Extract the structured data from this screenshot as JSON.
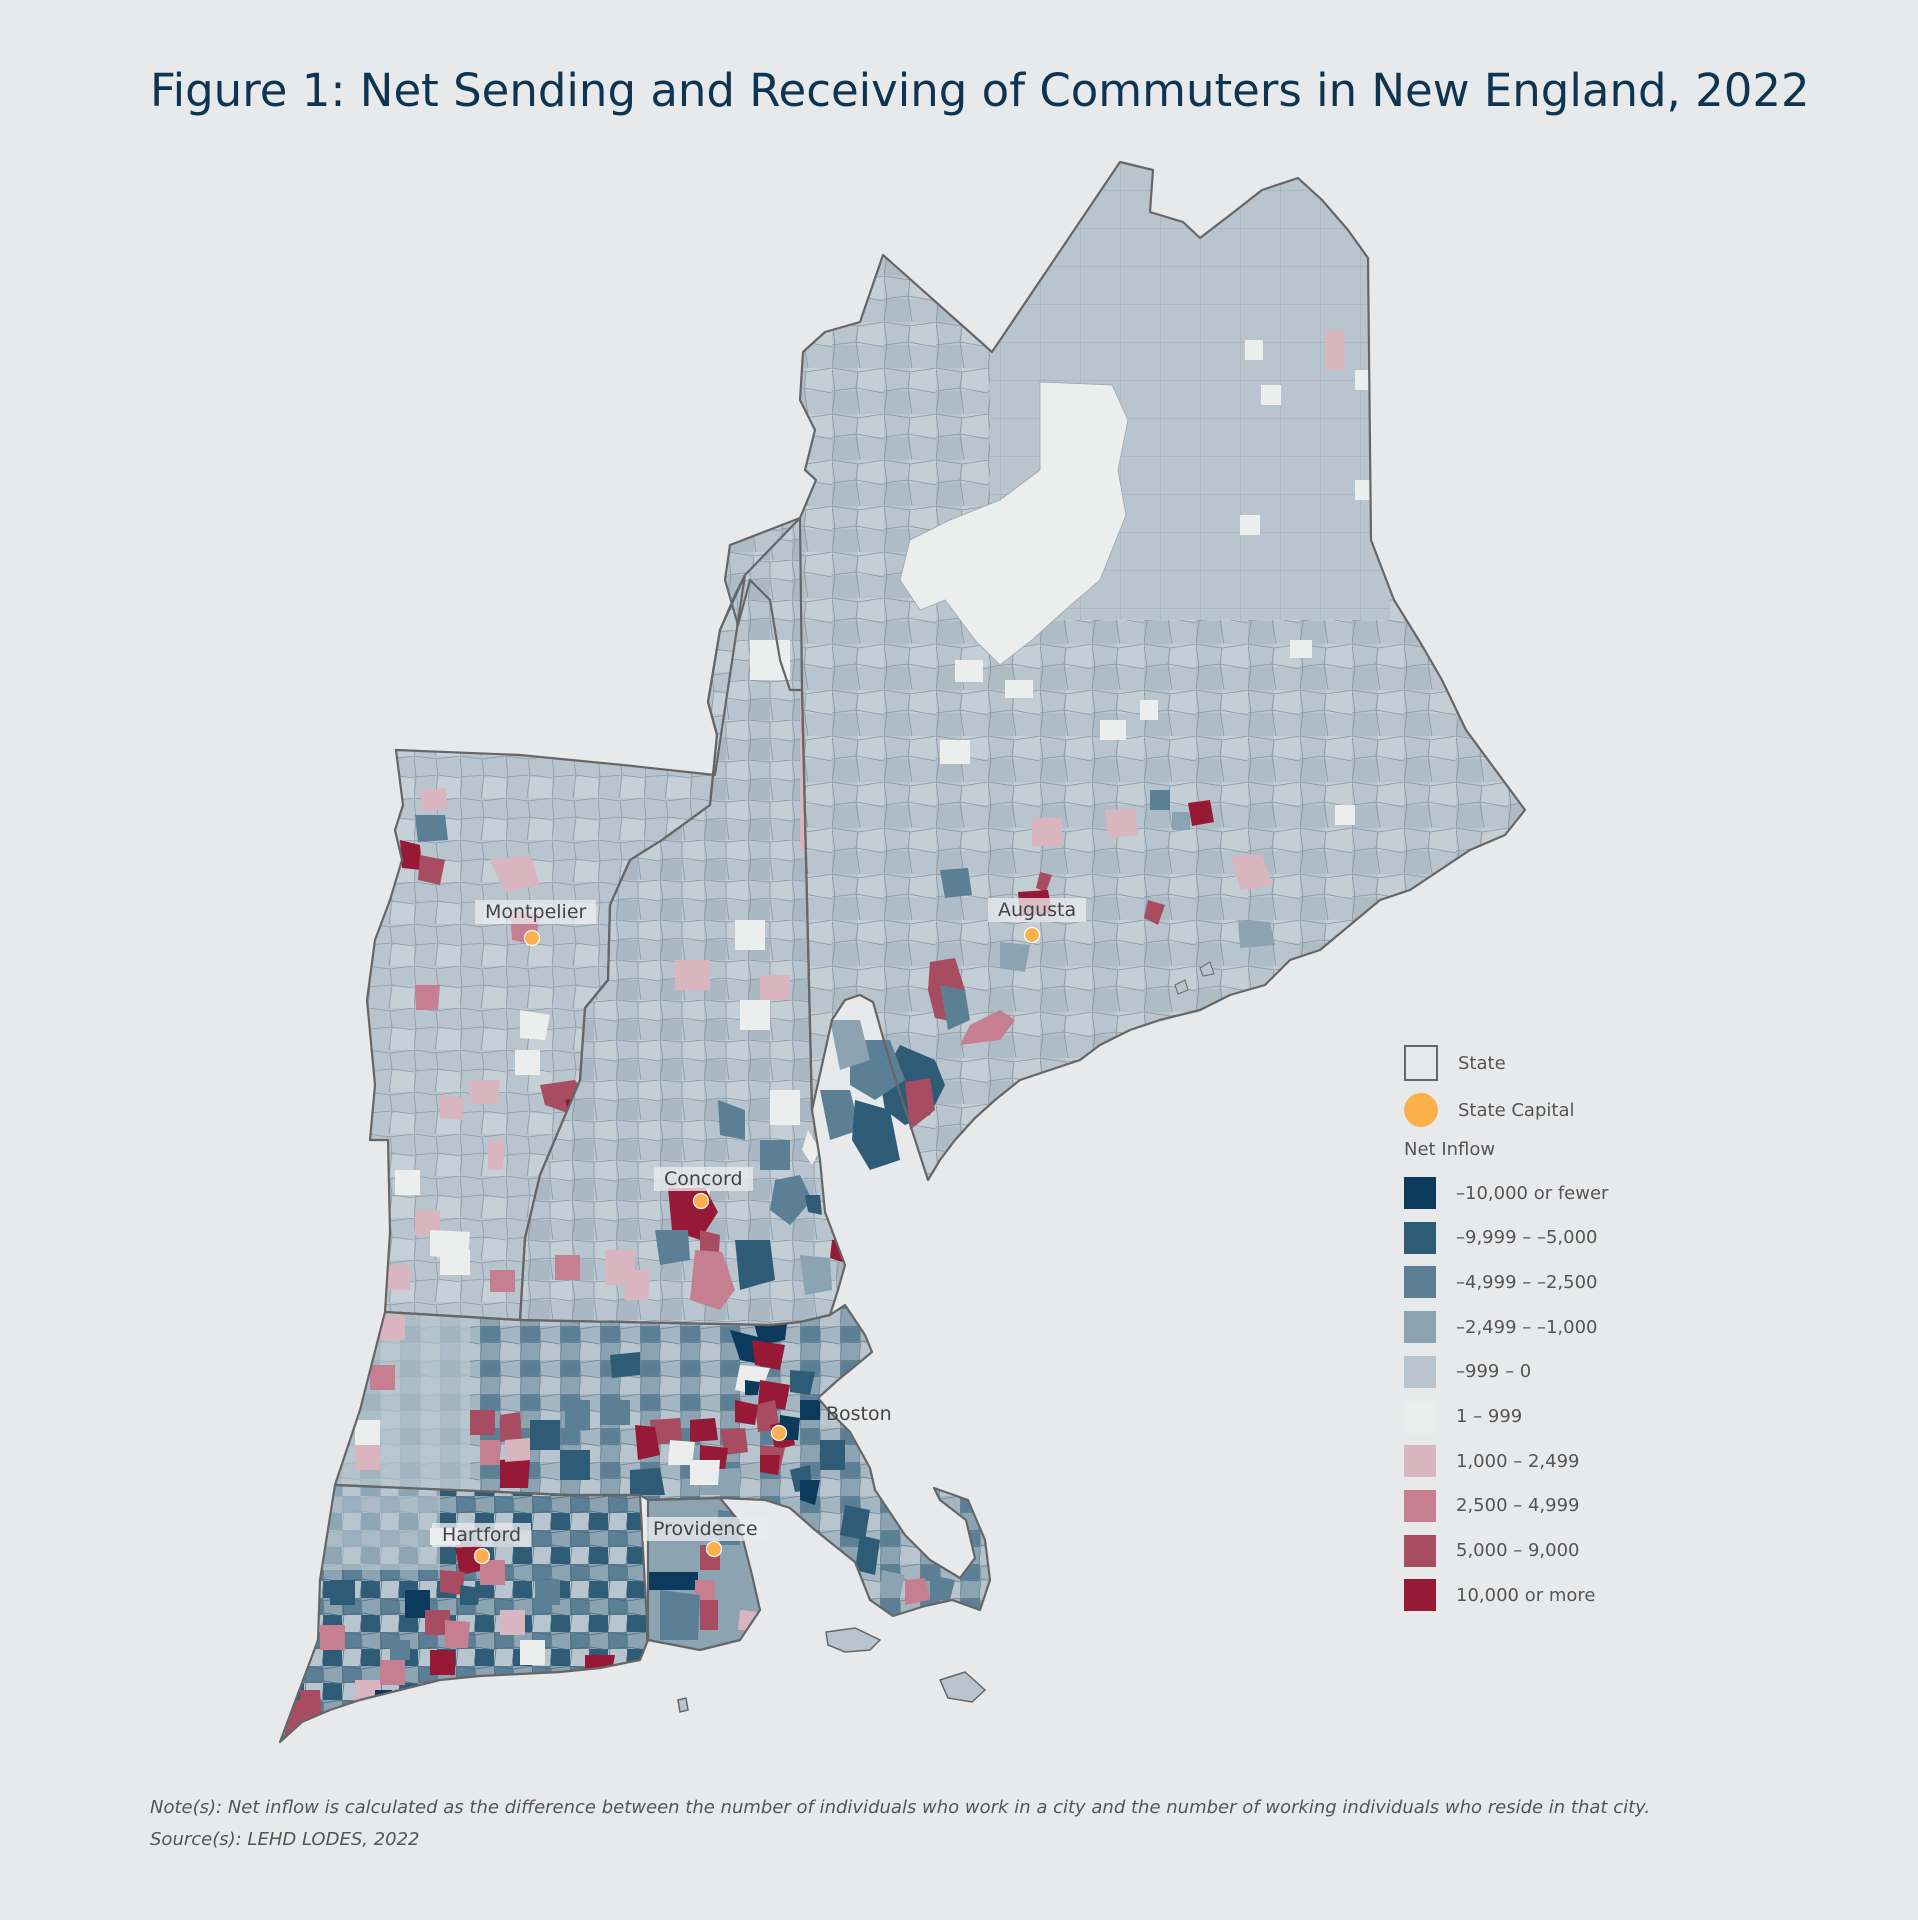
{
  "title": "Figure 1: Net Sending and Receiving of Commuters in New England, 2022",
  "cities": {
    "montpelier": "Montpelier",
    "augusta": "Augusta",
    "concord": "Concord",
    "boston": "Boston",
    "hartford": "Hartford",
    "providence": "Providence"
  },
  "legend": {
    "state": "State",
    "state_capital": "State Capital",
    "heading": "Net Inflow",
    "classes": [
      {
        "label": "–10,000 or fewer",
        "color": "#0c3a5c"
      },
      {
        "label": "–9,999  –  –5,000",
        "color": "#2e5b76"
      },
      {
        "label": "–4,999  –  –2,500",
        "color": "#5b7f95"
      },
      {
        "label": "–2,499  –  –1,000",
        "color": "#8ca3b2"
      },
      {
        "label": "–999  –  0",
        "color": "#b8c5ce"
      },
      {
        "label": "1  –  999",
        "color": "#eceded"
      },
      {
        "label": "1,000  –  2,499",
        "color": "#d8b5bf"
      },
      {
        "label": "2,500  –  4,999",
        "color": "#c57f91"
      },
      {
        "label": "5,000  –  9,000",
        "color": "#a84c62"
      },
      {
        "label": "10,000 or more",
        "color": "#961a35"
      }
    ],
    "capital_color": "#fbb04c",
    "state_outline_color": "#666666"
  },
  "notes": {
    "note": "Note(s): Net inflow is calculated as the difference between the number of individuals who work in a city and the number of working individuals who reside in that city.",
    "source": "Source(s): LEHD LODES, 2022"
  }
}
